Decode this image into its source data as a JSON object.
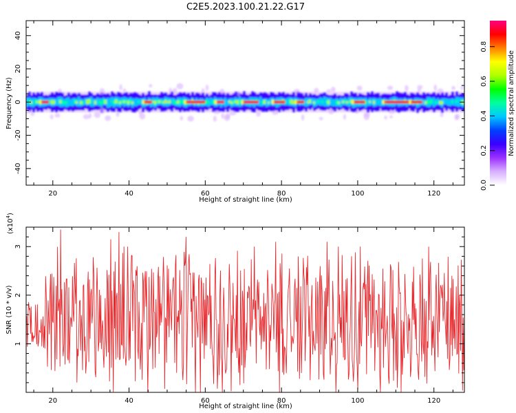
{
  "title": "C2E5.2023.100.21.22.G17",
  "colorbar": {
    "label": "Normalized spectral amplitude",
    "ticks": [
      "0.0",
      "0.2",
      "0.4",
      "0.6",
      "0.8"
    ],
    "tick_values": [
      0.0,
      0.2,
      0.4,
      0.6,
      0.8
    ],
    "range": [
      0.0,
      0.95
    ],
    "colormap": [
      "#ffffff",
      "#d8b0ff",
      "#9b30ff",
      "#3a00ff",
      "#0040ff",
      "#00c8ff",
      "#00ffa0",
      "#00ff00",
      "#b0ff00",
      "#ffff00",
      "#ff8000",
      "#ff0000",
      "#ff0080"
    ]
  },
  "chart_data": [
    {
      "type": "heatmap",
      "name": "spectrogram",
      "xlabel": "Height of straight line (km)",
      "ylabel": "Frequency (Hz)",
      "xlim": [
        13,
        128
      ],
      "ylim": [
        -50,
        49
      ],
      "xticks": [
        20,
        40,
        60,
        80,
        100,
        120
      ],
      "yticks": [
        -40,
        -20,
        0,
        20,
        40
      ],
      "band_center_hz": 0,
      "band_half_width_hz": 5,
      "grid": false
    },
    {
      "type": "line",
      "name": "snr",
      "xlabel": "Height of straight line (km)",
      "ylabel": "SNR (10 * v/v)",
      "y_multiplier_label": "(x10",
      "y_multiplier_exp": "4",
      "y_multiplier_close": ")",
      "xlim": [
        13,
        128
      ],
      "ylim": [
        0,
        3.4
      ],
      "xticks": [
        20,
        40,
        60,
        80,
        100,
        120
      ],
      "yticks": [
        1,
        2,
        3
      ],
      "color": "#e8262a",
      "x_start": 13,
      "x_end": 128,
      "sample_count": 700,
      "values_summary": {
        "min": 0.0,
        "max": 3.35,
        "mean": 1.55,
        "peaks": [
          [
            22.1,
            3.35
          ],
          [
            37.4,
            3.3
          ],
          [
            35.2,
            3.15
          ],
          [
            55.0,
            3.2
          ],
          [
            78.5,
            3.1
          ],
          [
            92.0,
            3.1
          ],
          [
            118.6,
            3.0
          ]
        ]
      },
      "grid": false
    }
  ]
}
